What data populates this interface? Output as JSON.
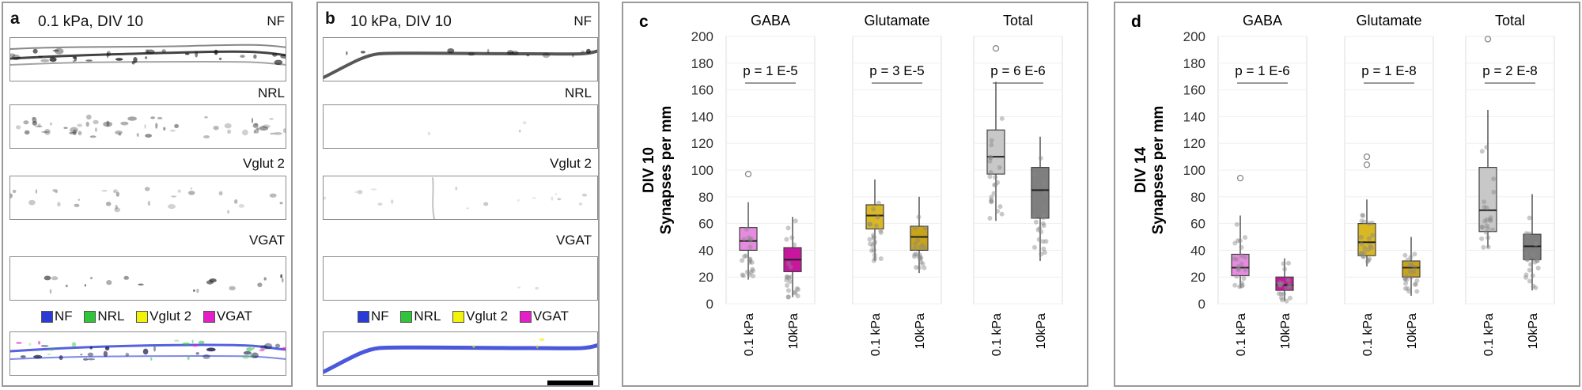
{
  "panels": {
    "a": {
      "label": "a",
      "title": "0.1 kPa, DIV 10",
      "channels": [
        "NF",
        "NRL",
        "Vglut 2",
        "VGAT"
      ]
    },
    "b": {
      "label": "b",
      "title": "10 kPa, DIV 10",
      "channels": [
        "NF",
        "NRL",
        "Vglut 2",
        "VGAT"
      ]
    },
    "legend": [
      {
        "label": "NF",
        "color": "#2b3bd6"
      },
      {
        "label": "NRL",
        "color": "#2fc43a"
      },
      {
        "label": "Vglut 2",
        "color": "#f2f20a"
      },
      {
        "label": "VGAT",
        "color": "#e51fc8"
      }
    ],
    "c": {
      "label": "c",
      "ylabel_line1": "DIV 10",
      "ylabel_line2": "Synapses per mm"
    },
    "d": {
      "label": "d",
      "ylabel_line1": "DIV 14",
      "ylabel_line2": "Synapses per mm"
    }
  },
  "chart_data": [
    {
      "type": "box",
      "panel": "c",
      "ylim": [
        0,
        200
      ],
      "yticks": [
        0,
        20,
        40,
        60,
        80,
        100,
        120,
        140,
        160,
        180,
        200
      ],
      "categories": [
        "0.1 kPa",
        "10kPa"
      ],
      "groups": [
        {
          "name": "GABA",
          "p_value": "p = 1 E-5",
          "boxes": [
            {
              "category": "0.1 kPa",
              "q1": 40,
              "median": 47,
              "q3": 57,
              "whisker_low": 18,
              "whisker_high": 76,
              "outliers": [
                97
              ],
              "color": "#e78be0"
            },
            {
              "category": "10kPa",
              "q1": 24,
              "median": 33,
              "q3": 42,
              "whisker_low": 5,
              "whisker_high": 65,
              "outliers": [],
              "color": "#c8169e"
            }
          ]
        },
        {
          "name": "Glutamate",
          "p_value": "p = 3 E-5",
          "boxes": [
            {
              "category": "0.1 kPa",
              "q1": 56,
              "median": 66,
              "q3": 74,
              "whisker_low": 32,
              "whisker_high": 93,
              "outliers": [],
              "color": "#d9b824"
            },
            {
              "category": "10kPa",
              "q1": 40,
              "median": 50,
              "q3": 58,
              "whisker_low": 23,
              "whisker_high": 80,
              "outliers": [],
              "color": "#c8a41a"
            }
          ]
        },
        {
          "name": "Total",
          "p_value": "p = 6 E-6",
          "boxes": [
            {
              "category": "0.1 kPa",
              "q1": 97,
              "median": 110,
              "q3": 130,
              "whisker_low": 62,
              "whisker_high": 166,
              "outliers": [
                191
              ],
              "color": "#c8c8c8"
            },
            {
              "category": "10kPa",
              "q1": 64,
              "median": 85,
              "q3": 102,
              "whisker_low": 32,
              "whisker_high": 125,
              "outliers": [],
              "color": "#7f7f7f"
            }
          ]
        }
      ]
    },
    {
      "type": "box",
      "panel": "d",
      "ylim": [
        0,
        200
      ],
      "yticks": [
        0,
        20,
        40,
        60,
        80,
        100,
        120,
        140,
        160,
        180,
        200
      ],
      "categories": [
        "0.1 kPa",
        "10kPa"
      ],
      "groups": [
        {
          "name": "GABA",
          "p_value": "p = 1 E-6",
          "boxes": [
            {
              "category": "0.1 kPa",
              "q1": 21,
              "median": 27,
              "q3": 37,
              "whisker_low": 12,
              "whisker_high": 66,
              "outliers": [
                94
              ],
              "color": "#e78be0"
            },
            {
              "category": "10kPa",
              "q1": 10,
              "median": 14,
              "q3": 20,
              "whisker_low": 2,
              "whisker_high": 34,
              "outliers": [],
              "color": "#c8169e"
            }
          ]
        },
        {
          "name": "Glutamate",
          "p_value": "p = 1 E-8",
          "boxes": [
            {
              "category": "0.1 kPa",
              "q1": 36,
              "median": 46,
              "q3": 60,
              "whisker_low": 28,
              "whisker_high": 78,
              "outliers": [
                104,
                110
              ],
              "color": "#d9b824"
            },
            {
              "category": "10kPa",
              "q1": 20,
              "median": 27,
              "q3": 32,
              "whisker_low": 6,
              "whisker_high": 50,
              "outliers": [],
              "color": "#c8a41a"
            }
          ]
        },
        {
          "name": "Total",
          "p_value": "p = 2 E-8",
          "boxes": [
            {
              "category": "0.1 kPa",
              "q1": 54,
              "median": 70,
              "q3": 102,
              "whisker_low": 42,
              "whisker_high": 145,
              "outliers": [
                198
              ],
              "color": "#c8c8c8"
            },
            {
              "category": "10kPa",
              "q1": 33,
              "median": 43,
              "q3": 52,
              "whisker_low": 10,
              "whisker_high": 82,
              "outliers": [],
              "color": "#7f7f7f"
            }
          ]
        }
      ]
    }
  ]
}
